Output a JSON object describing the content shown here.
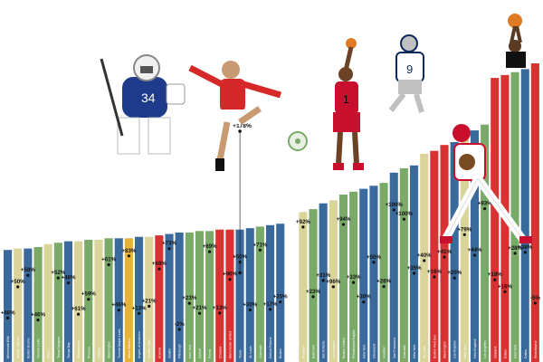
{
  "chart_data": {
    "type": "bar",
    "note_values": "Percent change labels as printed; bar heights are relative estimates (no value axis printed).",
    "categories": [
      "Minnesota Wild",
      "Buffalo Sabres",
      "Boston Bruins",
      "Toronto Leafs",
      "Miami",
      "Texas Rangers",
      "Tampa Bay",
      "Philadelphia",
      "Phoenix",
      "Calgary",
      "Washington",
      "Toronto Maple Leafs",
      "Miami Marlins",
      "Angels of Anaheim",
      "Golden State",
      "Arsenal",
      "Seattle",
      "Pittsburgh",
      "New York",
      "Detroit",
      "Forest",
      "Chelsea",
      "Manchester United",
      "Texas",
      "St. Louis",
      "Colorado",
      "Detroit Pistons",
      "Boston",
      "Brooklyn",
      "Baltimore",
      "San Antonio",
      "Los Angeles",
      "Boston Celtics",
      "Philadelphia Eagles",
      "New York",
      "Cleveland",
      "Houston",
      "San Francisco",
      "Colorado",
      "New York",
      "St. Louis",
      "Boston Red Sox",
      "Washington",
      "Los Angeles",
      "New York",
      "New England",
      "Los Angeles",
      "Oakland",
      "Dallas",
      "New York",
      "Dallas",
      "Real Madrid"
    ],
    "values": [
      5.2,
      5.3,
      5.3,
      5.4,
      5.6,
      5.7,
      5.8,
      5.8,
      5.9,
      5.9,
      6.0,
      6.0,
      6.0,
      6.1,
      6.1,
      6.2,
      6.3,
      6.4,
      6.4,
      6.5,
      6.5,
      6.6,
      6.6,
      6.6,
      6.7,
      6.8,
      6.9,
      7.0,
      7.8,
      8.0,
      8.4,
      8.6,
      9.0,
      9.2,
      9.4,
      9.6,
      9.8,
      10.5,
      10.8,
      11.0,
      11.8,
      12.0,
      12.4,
      12.6,
      13.0,
      13.4,
      13.8,
      17.0,
      17.2,
      17.4,
      17.6,
      18.0
    ],
    "bar_colors": [
      "#3a6a9c",
      "#d9d49a",
      "#3a6a9c",
      "#7aaa68",
      "#d9d49a",
      "#7aaa68",
      "#3a6a9c",
      "#d9d49a",
      "#7aaa68",
      "#d9d49a",
      "#7aaa68",
      "#3a6a9c",
      "#e7b23a",
      "#3a6a9c",
      "#d9d49a",
      "#d93232",
      "#3a6a9c",
      "#3a6a9c",
      "#7aaa68",
      "#7aaa68",
      "#7aaa68",
      "#d93232",
      "#d93232",
      "#3a6a9c",
      "#3a6a9c",
      "#7aaa68",
      "#3a6a9c",
      "#3a6a9c",
      "#d9d49a",
      "#7aaa68",
      "#3a6a9c",
      "#d9d49a",
      "#7aaa68",
      "#7aaa68",
      "#3a6a9c",
      "#3a6a9c",
      "#7aaa68",
      "#3a6a9c",
      "#7aaa68",
      "#3a6a9c",
      "#d9d49a",
      "#d93232",
      "#d93232",
      "#3a6a9c",
      "#d9d49a",
      "#3a6a9c",
      "#7aaa68",
      "#d93232",
      "#d93232",
      "#7aaa68",
      "#3a6a9c",
      "#d93232"
    ],
    "change_labels": [
      {
        "i": 0,
        "text": "+46%",
        "pos": 0.85
      },
      {
        "i": 1,
        "text": "+50%",
        "pos": 0.45
      },
      {
        "i": 2,
        "text": "+58%",
        "pos": 0.3
      },
      {
        "i": 3,
        "text": "+46%",
        "pos": 0.88
      },
      {
        "i": 5,
        "text": "+52%",
        "pos": 0.38
      },
      {
        "i": 6,
        "text": "+48%",
        "pos": 0.45
      },
      {
        "i": 7,
        "text": "+61%",
        "pos": 0.82
      },
      {
        "i": 8,
        "text": "+59%",
        "pos": 0.65
      },
      {
        "i": 10,
        "text": "+61%",
        "pos": 0.26
      },
      {
        "i": 11,
        "text": "+46%",
        "pos": 0.78
      },
      {
        "i": 12,
        "text": "+83%",
        "pos": 0.16
      },
      {
        "i": 13,
        "text": "+13%",
        "pos": 0.82
      },
      {
        "i": 14,
        "text": "+21%",
        "pos": 0.74
      },
      {
        "i": 15,
        "text": "+68%",
        "pos": 0.33
      },
      {
        "i": 16,
        "text": "+73%",
        "pos": 0.12
      },
      {
        "i": 17,
        "text": "-2%",
        "pos": 1.0
      },
      {
        "i": 18,
        "text": "+23%",
        "pos": 0.72
      },
      {
        "i": 19,
        "text": "+21%",
        "pos": 0.83
      },
      {
        "i": 20,
        "text": "+69%",
        "pos": 0.18
      },
      {
        "i": 21,
        "text": "+13%",
        "pos": 0.83
      },
      {
        "i": 22,
        "text": "+96%",
        "pos": 0.48
      },
      {
        "i": 23,
        "text": "+50%",
        "pos": 0.3
      },
      {
        "i": 24,
        "text": "+30%",
        "pos": 0.8
      },
      {
        "i": 25,
        "text": "+71%",
        "pos": 0.2
      },
      {
        "i": 26,
        "text": "+17%",
        "pos": 0.8
      },
      {
        "i": 27,
        "text": "+25%",
        "pos": 0.73
      },
      {
        "i": 28,
        "text": "+92%",
        "pos": 0.1
      },
      {
        "i": 29,
        "text": "+23%",
        "pos": 0.72
      },
      {
        "i": 30,
        "text": "+31%",
        "pos": 0.6
      },
      {
        "i": 31,
        "text": "+96%",
        "pos": 0.66
      },
      {
        "i": 32,
        "text": "+94%",
        "pos": 0.2
      },
      {
        "i": 33,
        "text": "+33%",
        "pos": 0.65
      },
      {
        "i": 34,
        "text": "+30%",
        "pos": 0.8
      },
      {
        "i": 35,
        "text": "+50%",
        "pos": 0.52
      },
      {
        "i": 36,
        "text": "+28%",
        "pos": 0.7
      },
      {
        "i": 37,
        "text": "+100%",
        "pos": 0.22
      },
      {
        "i": 38,
        "text": "+100%",
        "pos": 0.3
      },
      {
        "i": 39,
        "text": "+35%",
        "pos": 0.65
      },
      {
        "i": 40,
        "text": "+40%",
        "pos": 0.6
      },
      {
        "i": 41,
        "text": "+16%",
        "pos": 0.7
      },
      {
        "i": 42,
        "text": "+41%",
        "pos": 0.6
      },
      {
        "i": 43,
        "text": "+20%",
        "pos": 0.72
      },
      {
        "i": 44,
        "text": "+79%",
        "pos": 0.5
      },
      {
        "i": 45,
        "text": "+44%",
        "pos": 0.62
      },
      {
        "i": 46,
        "text": "+93%",
        "pos": 0.4
      },
      {
        "i": 47,
        "text": "+18%",
        "pos": 0.8
      },
      {
        "i": 48,
        "text": "+16%",
        "pos": 0.85
      },
      {
        "i": 49,
        "text": "+28%",
        "pos": 0.7
      },
      {
        "i": 50,
        "text": "+38%",
        "pos": 0.7
      },
      {
        "i": 51,
        "text": "-5%",
        "pos": 0.9
      }
    ],
    "callout": {
      "i": 23,
      "text": "+178%",
      "dot_pos": 0.45
    },
    "grid": false,
    "legend": "none"
  },
  "athletes": [
    {
      "name": "hockey goalie",
      "jersey_number": "34",
      "colors": [
        "#1e3a8a",
        "#ffffff"
      ]
    },
    {
      "name": "soccer player",
      "colors": [
        "#d62828",
        "#ffffff"
      ]
    },
    {
      "name": "basketball player",
      "jersey_number": "1",
      "colors": [
        "#c8102e",
        "#000000"
      ]
    },
    {
      "name": "football quarterback",
      "jersey_number": "9",
      "colors": [
        "#0b2a5a",
        "#c0c0c0"
      ]
    },
    {
      "name": "baseball player",
      "colors": [
        "#c8102e",
        "#ffffff"
      ]
    },
    {
      "name": "basketball player dunking",
      "colors": [
        "#111111",
        "#7aaa68"
      ]
    }
  ]
}
